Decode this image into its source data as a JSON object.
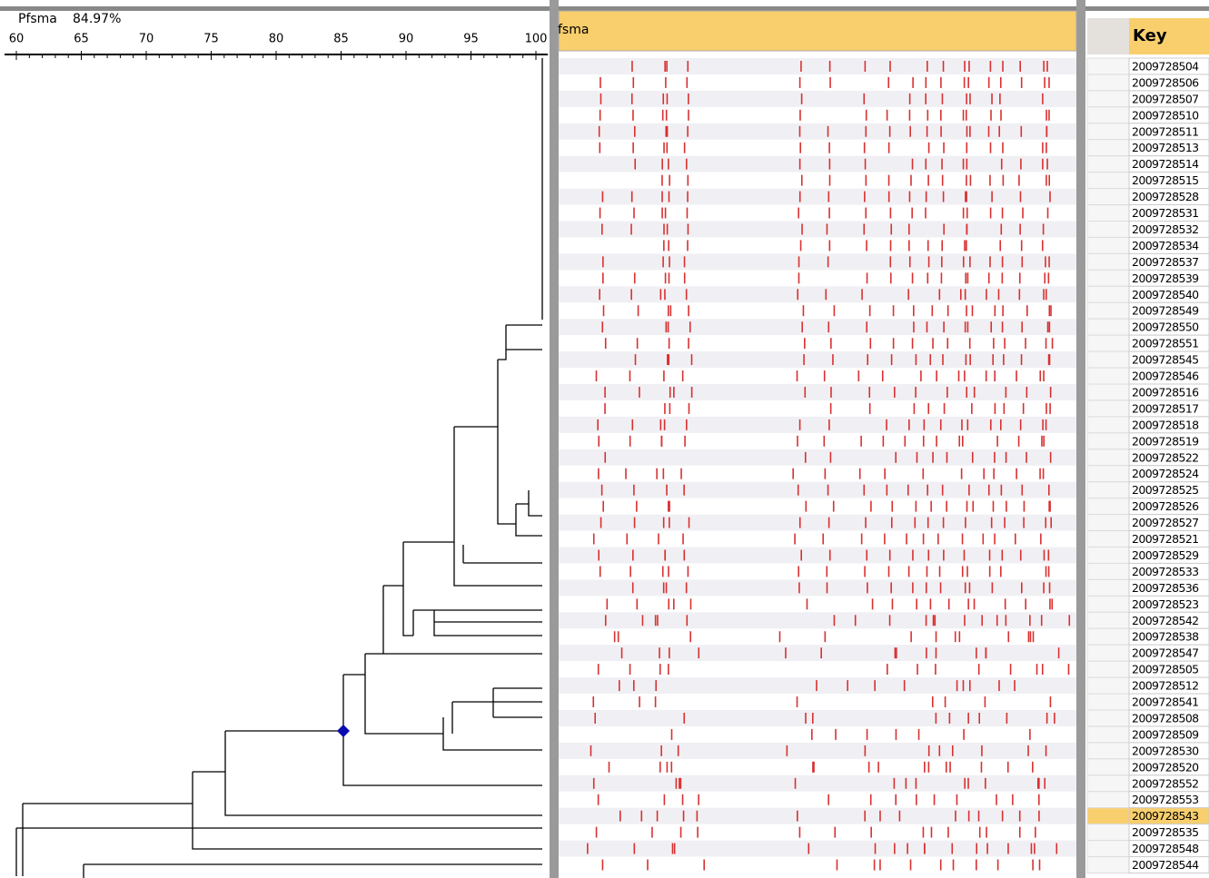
{
  "dendrogram": {
    "title": "Pfsma",
    "similarity": "84.97%",
    "scale": {
      "ticks": [
        60,
        65,
        70,
        75,
        80,
        85,
        90,
        95,
        100
      ],
      "range": [
        60,
        100
      ]
    }
  },
  "bands": {
    "header": "fsma"
  },
  "key": {
    "header": "Key",
    "rows": [
      {
        "id": "2009728504"
      },
      {
        "id": "2009728506"
      },
      {
        "id": "2009728507"
      },
      {
        "id": "2009728510"
      },
      {
        "id": "2009728511"
      },
      {
        "id": "2009728513"
      },
      {
        "id": "2009728514"
      },
      {
        "id": "2009728515"
      },
      {
        "id": "2009728528"
      },
      {
        "id": "2009728531"
      },
      {
        "id": "2009728532"
      },
      {
        "id": "2009728534"
      },
      {
        "id": "2009728537"
      },
      {
        "id": "2009728539"
      },
      {
        "id": "2009728540"
      },
      {
        "id": "2009728549"
      },
      {
        "id": "2009728550"
      },
      {
        "id": "2009728551"
      },
      {
        "id": "2009728545"
      },
      {
        "id": "2009728546"
      },
      {
        "id": "2009728516"
      },
      {
        "id": "2009728517"
      },
      {
        "id": "2009728518"
      },
      {
        "id": "2009728519"
      },
      {
        "id": "2009728522"
      },
      {
        "id": "2009728524"
      },
      {
        "id": "2009728525"
      },
      {
        "id": "2009728526"
      },
      {
        "id": "2009728527"
      },
      {
        "id": "2009728521"
      },
      {
        "id": "2009728529"
      },
      {
        "id": "2009728533"
      },
      {
        "id": "2009728536"
      },
      {
        "id": "2009728523"
      },
      {
        "id": "2009728542"
      },
      {
        "id": "2009728538"
      },
      {
        "id": "2009728547"
      },
      {
        "id": "2009728505"
      },
      {
        "id": "2009728512"
      },
      {
        "id": "2009728541"
      },
      {
        "id": "2009728508"
      },
      {
        "id": "2009728509"
      },
      {
        "id": "2009728530"
      },
      {
        "id": "2009728520"
      },
      {
        "id": "2009728552"
      },
      {
        "id": "2009728553"
      },
      {
        "id": "2009728543",
        "selected": true
      },
      {
        "id": "2009728535"
      },
      {
        "id": "2009728548"
      },
      {
        "id": "2009728544"
      }
    ]
  }
}
